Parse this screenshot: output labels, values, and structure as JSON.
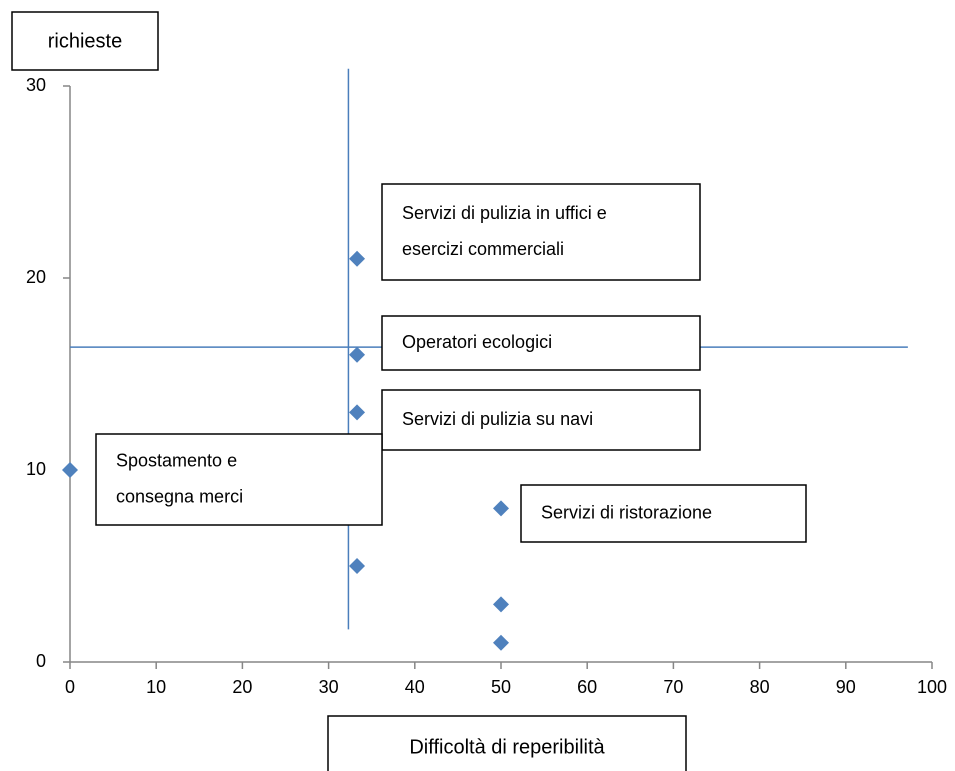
{
  "chart_data": {
    "type": "scatter",
    "y_label": "richieste",
    "x_label": "Difficoltà di reperibilità",
    "x": [
      0,
      33.3,
      33.3,
      33.3,
      33.3,
      50,
      50,
      50
    ],
    "values": [
      10,
      21,
      16,
      13,
      5,
      8,
      3,
      1
    ],
    "color": "#4f81bd",
    "xlim": [
      0,
      100
    ],
    "xticks": [
      0,
      10,
      20,
      30,
      40,
      50,
      60,
      70,
      80,
      90,
      100
    ],
    "ylim": [
      0,
      30
    ],
    "yticks": [
      0,
      10,
      20,
      30
    ],
    "reference_lines": {
      "color": "#4a7ebb",
      "vertical": {
        "x": 32.3,
        "y": [
          1.7,
          30.9
        ]
      },
      "horizontal": {
        "y": 16.4,
        "x": [
          0,
          97.2
        ]
      }
    },
    "annotations": [
      {
        "lines": [
          "Servizi di pulizia in uffici e",
          "esercizi commerciali"
        ]
      },
      {
        "lines": [
          "Operatori ecologici"
        ]
      },
      {
        "lines": [
          "Servizi di pulizia su navi"
        ]
      },
      {
        "lines": [
          "Spostamento e",
          "consegna merci"
        ]
      },
      {
        "lines": [
          "Servizi di ristorazione"
        ]
      }
    ]
  }
}
